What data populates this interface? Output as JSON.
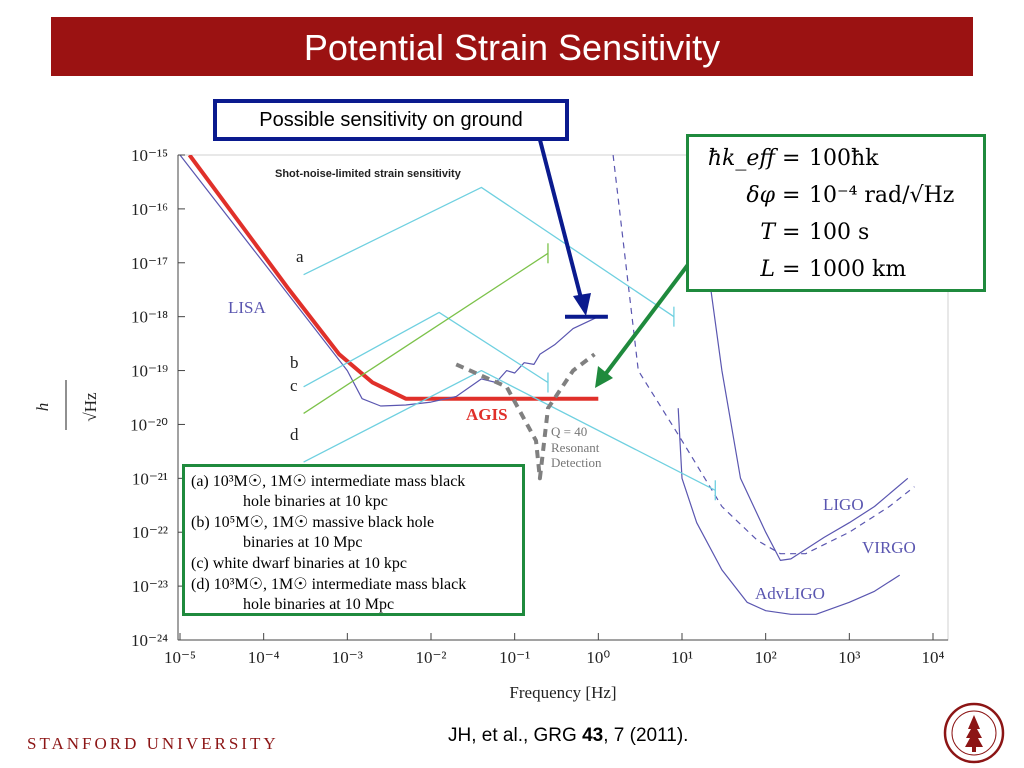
{
  "slide": {
    "title": "Potential Strain Sensitivity",
    "callout_ground": "Possible sensitivity on ground",
    "params": [
      {
        "lhs": "ħk_eff",
        "rhs": "100ħk"
      },
      {
        "lhs": "δφ",
        "rhs": "10⁻⁴ rad/√Hz"
      },
      {
        "lhs": "T",
        "rhs": "100 s"
      },
      {
        "lhs": "L",
        "rhs": "1000 km"
      }
    ],
    "legend": [
      "(a) 10³M☉, 1M☉ intermediate mass black",
      "hole binaries at 10 kpc",
      "(b) 10⁵M☉, 1M☉ massive black hole",
      "binaries at 10 Mpc",
      "(c) white dwarf binaries at 10 kpc",
      "(d) 10³M☉, 1M☉ intermediate mass black",
      "hole binaries at 10 Mpc"
    ],
    "footer_left": "STANFORD UNIVERSITY",
    "citation_pre": "JH, et al., GRG ",
    "citation_bold": "43",
    "citation_post": ", 7 (2011).",
    "colors": {
      "title_bar": "#9b1212",
      "agis": "#e0302a",
      "detector": "#5a56b0",
      "source": "#6fd0e0",
      "source_c": "#7cc24a",
      "ground_callout": "#0a1a8e",
      "green_box": "#1f8a3d",
      "resonant": "#808080"
    }
  },
  "chart_data": {
    "type": "line",
    "title": "Shot-noise-limited strain sensitivity",
    "xlabel": "Frequency [Hz]",
    "ylabel": "h/√Hz",
    "xscale": "log",
    "yscale": "log",
    "xlim": [
      1e-05,
      10000
    ],
    "ylim": [
      1e-24,
      1e-15
    ],
    "x_ticks": [
      "10⁻⁵",
      "10⁻⁴",
      "10⁻³",
      "10⁻²",
      "10⁻¹",
      "10⁰",
      "10¹",
      "10²",
      "10³",
      "10⁴"
    ],
    "y_ticks": [
      "10⁻¹⁵",
      "10⁻¹⁶",
      "10⁻¹⁷",
      "10⁻¹⁸",
      "10⁻¹⁹",
      "10⁻²⁰",
      "10⁻²¹",
      "10⁻²²",
      "10⁻²³",
      "10⁻²⁴"
    ],
    "series": [
      {
        "name": "AGIS",
        "style": "thick",
        "points": [
          [
            1.3e-05,
            1e-15
          ],
          [
            0.0002,
            3.2e-18
          ],
          [
            0.0008,
            2e-19
          ],
          [
            0.002,
            6e-20
          ],
          [
            0.005,
            3e-20
          ],
          [
            1.0,
            3e-20
          ]
        ]
      },
      {
        "name": "LISA",
        "points": [
          [
            1e-05,
            1e-15
          ],
          [
            0.0001,
            1e-17
          ],
          [
            0.001,
            1e-19
          ],
          [
            0.0015,
            3e-20
          ],
          [
            0.0025,
            2.2e-20
          ],
          [
            0.005,
            2.3e-20
          ],
          [
            0.01,
            2.6e-20
          ],
          [
            0.02,
            3.3e-20
          ],
          [
            0.04,
            7e-20
          ],
          [
            0.06,
            6e-20
          ],
          [
            0.08,
            1e-19
          ],
          [
            0.1,
            9e-20
          ],
          [
            0.13,
            1.4e-19
          ],
          [
            0.17,
            1.3e-19
          ],
          [
            0.2,
            2e-19
          ],
          [
            0.3,
            3e-19
          ],
          [
            0.5,
            6e-19
          ],
          [
            1.0,
            1e-18
          ]
        ]
      },
      {
        "name": "Possible sensitivity on ground",
        "style": "thick",
        "points": [
          [
            0.4,
            1e-18
          ],
          [
            1.3,
            1e-18
          ]
        ]
      },
      {
        "name": "LIGO",
        "points": [
          [
            15,
            1e-15
          ],
          [
            20,
            1e-17
          ],
          [
            30,
            1e-19
          ],
          [
            50,
            1e-21
          ],
          [
            100,
            1e-22
          ],
          [
            150,
            3e-23
          ],
          [
            200,
            3.2e-23
          ],
          [
            500,
            8e-23
          ],
          [
            1000,
            1.5e-22
          ],
          [
            2000,
            3e-22
          ],
          [
            5000,
            1e-21
          ]
        ]
      },
      {
        "name": "VIRGO",
        "style": "dashed",
        "points": [
          [
            1.5,
            1e-15
          ],
          [
            3,
            1e-19
          ],
          [
            10,
            5e-21
          ],
          [
            30,
            3e-22
          ],
          [
            80,
            7e-23
          ],
          [
            150,
            4e-23
          ],
          [
            300,
            4e-23
          ],
          [
            1000,
            1e-22
          ],
          [
            3000,
            3e-22
          ],
          [
            6000,
            7e-22
          ]
        ]
      },
      {
        "name": "AdvLIGO",
        "points": [
          [
            9,
            2e-20
          ],
          [
            10,
            1e-21
          ],
          [
            15,
            1.5e-22
          ],
          [
            30,
            2e-23
          ],
          [
            60,
            5e-24
          ],
          [
            100,
            3.5e-24
          ],
          [
            200,
            3e-24
          ],
          [
            400,
            3e-24
          ],
          [
            1000,
            5e-24
          ],
          [
            2000,
            8e-24
          ],
          [
            4000,
            1.6e-23
          ]
        ]
      },
      {
        "name": "a",
        "points": [
          [
            0.0003,
            6e-18
          ],
          [
            0.04,
            2.5e-16
          ],
          [
            8,
            1e-18
          ]
        ]
      },
      {
        "name": "b",
        "points": [
          [
            0.0003,
            5e-20
          ],
          [
            0.0125,
            1.2e-18
          ],
          [
            0.25,
            6e-20
          ]
        ]
      },
      {
        "name": "c",
        "points": [
          [
            0.0003,
            1.6e-20
          ],
          [
            0.25,
            1.5e-17
          ]
        ]
      },
      {
        "name": "d",
        "points": [
          [
            0.0003,
            2e-21
          ],
          [
            0.04,
            1e-19
          ],
          [
            25,
            6e-22
          ]
        ]
      },
      {
        "name": "Q = 40 Resonant Detection",
        "style": "dashed",
        "points": [
          [
            0.02,
            1.3e-19
          ],
          [
            0.08,
            5e-20
          ],
          [
            0.18,
            5e-21
          ],
          [
            0.2,
            1e-21
          ],
          [
            0.25,
            2e-20
          ],
          [
            0.5,
            1e-19
          ],
          [
            0.9,
            2e-19
          ]
        ]
      }
    ],
    "labels": {
      "lisa": "LISA",
      "agis": "AGIS",
      "ligo": "LIGO",
      "virgo": "VIRGO",
      "advligo": "AdvLIGO",
      "a": "a",
      "b": "b",
      "c": "c",
      "d": "d",
      "resonant": [
        "Q = 40",
        "Resonant",
        "Detection"
      ]
    }
  }
}
